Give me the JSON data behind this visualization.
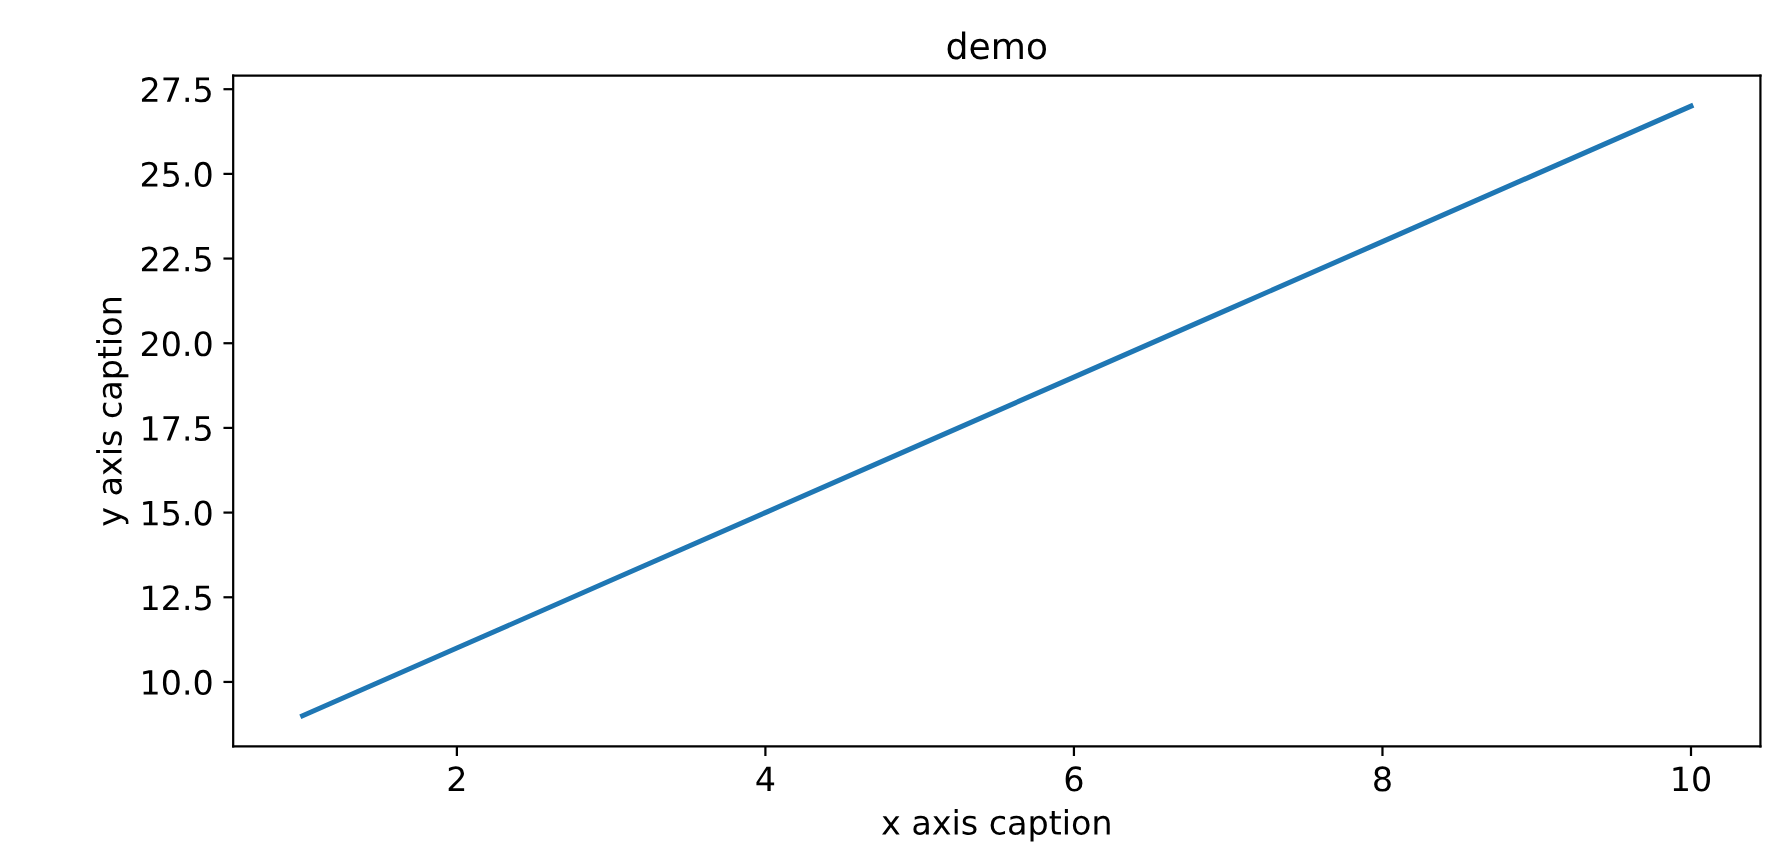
{
  "chart_data": {
    "type": "line",
    "title": "demo",
    "xlabel": "x axis caption",
    "ylabel": "y axis caption",
    "x": [
      1,
      2,
      3,
      4,
      5,
      6,
      7,
      8,
      9,
      10
    ],
    "series": [
      {
        "color": "#1f77b4",
        "values": [
          9,
          11,
          13,
          15,
          17,
          19,
          21,
          23,
          25,
          27
        ]
      }
    ],
    "xlim": [
      0.55,
      10.45
    ],
    "ylim": [
      8.1,
      27.9
    ],
    "xticks": [
      2,
      4,
      6,
      8,
      10
    ],
    "yticks": [
      {
        "value": 10,
        "label": "10.0"
      },
      {
        "value": 12.5,
        "label": "12.5"
      },
      {
        "value": 15,
        "label": "15.0"
      },
      {
        "value": 17.5,
        "label": "17.5"
      },
      {
        "value": 20,
        "label": "20.0"
      },
      {
        "value": 22.5,
        "label": "22.5"
      },
      {
        "value": 25,
        "label": "25.0"
      },
      {
        "value": 27.5,
        "label": "27.5"
      }
    ],
    "grid": false,
    "legend": false
  }
}
